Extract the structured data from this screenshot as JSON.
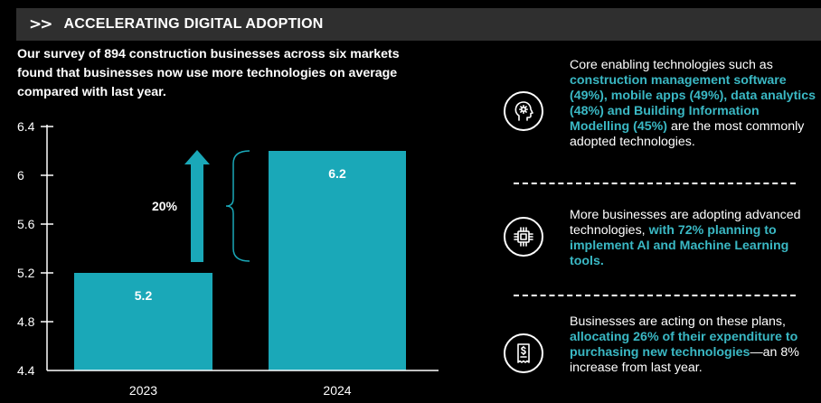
{
  "header": {
    "chevron": ">>",
    "title": "ACCELERATING DIGITAL ADOPTION"
  },
  "intro_text": "Our survey of 894 construction businesses across six markets found that businesses now use more technologies on average compared with last year.",
  "chart_data": {
    "type": "bar",
    "categories": [
      "2023",
      "2024"
    ],
    "values": [
      5.2,
      6.2
    ],
    "value_labels": [
      "5.2",
      "6.2"
    ],
    "ylim": [
      4.4,
      6.4
    ],
    "yticks": [
      "4.4",
      "4.8",
      "5.2",
      "5.6",
      "6",
      "6.4"
    ],
    "annotation": "20%",
    "bar_color": "#1aa8b8",
    "grid": false
  },
  "side_items": [
    {
      "icon": "head-gear-icon",
      "segments": [
        {
          "text": "Core enabling technologies such as ",
          "highlight": false
        },
        {
          "text": "construction management software (49%), mobile apps (49%), data analytics (48%) and Building Information Modelling (45%)",
          "highlight": true
        },
        {
          "text": " are the most commonly adopted technologies.",
          "highlight": false
        }
      ]
    },
    {
      "icon": "microchip-icon",
      "segments": [
        {
          "text": "More businesses are adopting advanced technologies, ",
          "highlight": false
        },
        {
          "text": "with 72% planning to implement AI and Machine Learning tools.",
          "highlight": true
        }
      ]
    },
    {
      "icon": "receipt-dollar-icon",
      "segments": [
        {
          "text": "Businesses are acting on these plans, ",
          "highlight": false
        },
        {
          "text": "allocating 26% of their expenditure to purchasing new technologies",
          "highlight": true
        },
        {
          "text": "—an 8% increase from last year.",
          "highlight": false
        }
      ]
    }
  ],
  "colors": {
    "accent": "#1aa8b8",
    "highlight_text": "#3ab8c4",
    "background": "#000000",
    "header_bg": "#2f2f2f"
  }
}
